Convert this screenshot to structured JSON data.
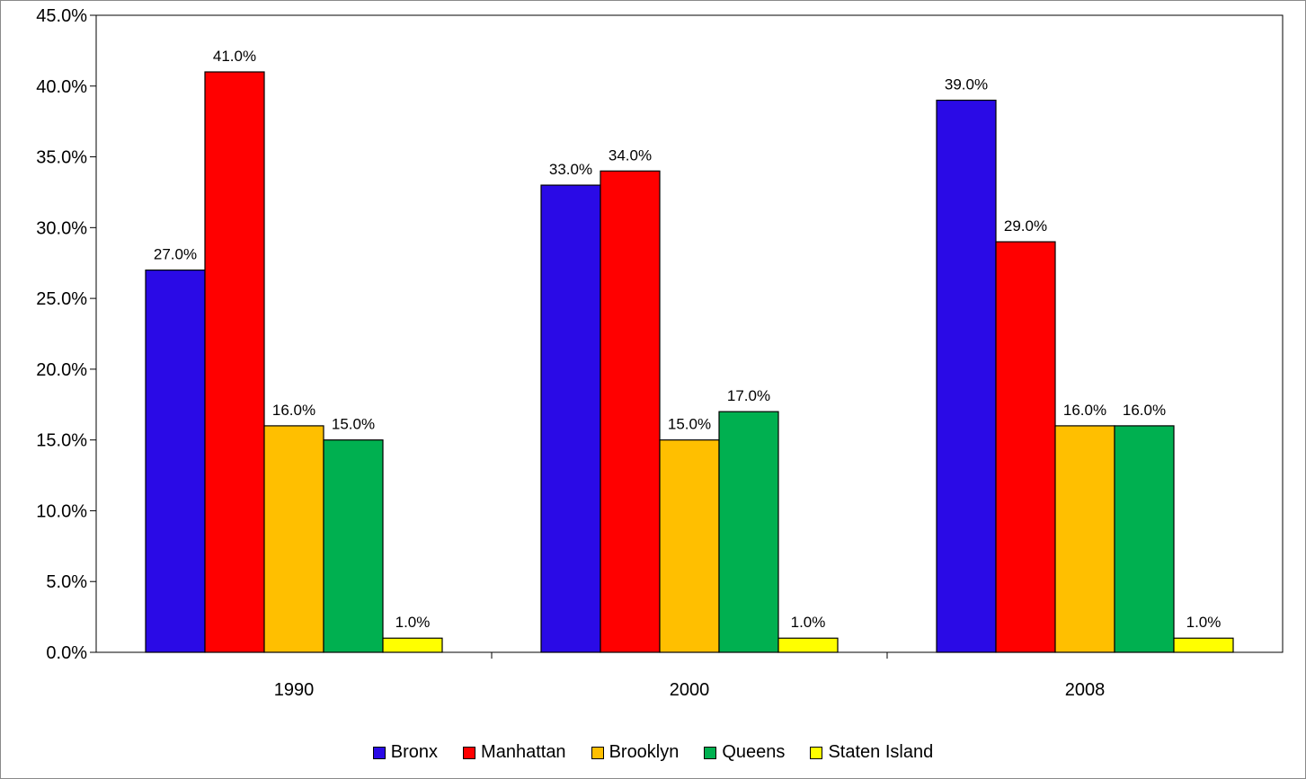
{
  "chart_data": {
    "type": "bar",
    "title": "",
    "categories": [
      "1990",
      "2000",
      "2008"
    ],
    "series": [
      {
        "name": "Bronx",
        "color": "#2a0ae6",
        "values": [
          27.0,
          33.0,
          39.0
        ]
      },
      {
        "name": "Manhattan",
        "color": "#ff0000",
        "values": [
          41.0,
          34.0,
          29.0
        ]
      },
      {
        "name": "Brooklyn",
        "color": "#ffbf00",
        "values": [
          16.0,
          15.0,
          16.0
        ]
      },
      {
        "name": "Queens",
        "color": "#00b050",
        "values": [
          15.0,
          17.0,
          16.0
        ]
      },
      {
        "name": "Staten Island",
        "color": "#ffff00",
        "values": [
          1.0,
          1.0,
          1.0
        ]
      }
    ],
    "ylim": [
      0,
      45
    ],
    "yticks": [
      0,
      5,
      10,
      15,
      20,
      25,
      30,
      35,
      40,
      45
    ],
    "y_format": "percent_1dp",
    "xlabel": "",
    "ylabel": "",
    "grid": false,
    "legend_position": "bottom"
  }
}
